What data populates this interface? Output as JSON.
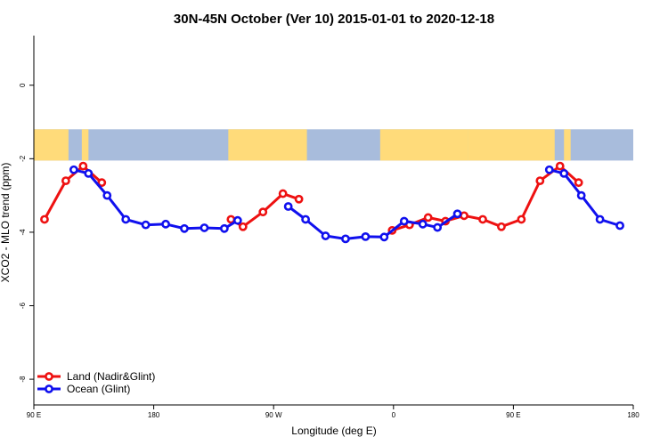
{
  "chart_data": {
    "type": "line",
    "title": "30N-45N October (Ver 10)   2015-01-01 to 2020-12-18",
    "xlabel": "Longitude (deg E)",
    "ylabel": "XCO2 - MLO trend (ppm)",
    "x_axis": {
      "ticks": [
        {
          "value": 90,
          "label": "90 E"
        },
        {
          "value": 180,
          "label": "180"
        },
        {
          "value": 270,
          "label": "90 W"
        },
        {
          "value": 360,
          "label": "0"
        },
        {
          "value": 450,
          "label": "90 E"
        },
        {
          "value": 540,
          "label": "180"
        }
      ],
      "range": [
        90,
        540
      ]
    },
    "y_axis": {
      "ticks": [
        {
          "value": 0,
          "label": "0"
        },
        {
          "value": -2,
          "label": "-2"
        },
        {
          "value": -4,
          "label": "-4"
        },
        {
          "value": -6,
          "label": "-6"
        },
        {
          "value": -8,
          "label": "-8"
        }
      ],
      "range": [
        -8.7,
        1.35
      ]
    },
    "map_band": {
      "y_top": -1.2,
      "y_bottom": -2.05,
      "ocean_color": "#a8bcdc",
      "land_color": "#ffdb7a"
    },
    "legend": {
      "position": "bottom-left"
    },
    "grid": false,
    "series": [
      {
        "name": "Land (Nadir&Glint)",
        "color": "#ee1111",
        "segments": [
          [
            [
              98,
              -3.65
            ],
            [
              114,
              -2.6
            ],
            [
              127,
              -2.2
            ],
            [
              141,
              -2.65
            ]
          ],
          [
            [
              238,
              -3.65
            ],
            [
              247,
              -3.85
            ],
            [
              262,
              -3.45
            ],
            [
              277,
              -2.95
            ],
            [
              289,
              -3.1
            ]
          ],
          [
            [
              359,
              -3.95
            ],
            [
              372,
              -3.8
            ],
            [
              386,
              -3.6
            ],
            [
              399,
              -3.7
            ],
            [
              413,
              -3.55
            ],
            [
              427,
              -3.65
            ],
            [
              441,
              -3.85
            ],
            [
              456,
              -3.65
            ],
            [
              470,
              -2.6
            ],
            [
              485,
              -2.2
            ],
            [
              499,
              -2.65
            ]
          ]
        ]
      },
      {
        "name": "Ocean (Glint)",
        "color": "#1010ee",
        "segments": [
          [
            [
              120,
              -2.3
            ],
            [
              131,
              -2.4
            ],
            [
              145,
              -3.0
            ],
            [
              159,
              -3.65
            ],
            [
              174,
              -3.8
            ],
            [
              189,
              -3.78
            ],
            [
              203,
              -3.9
            ],
            [
              218,
              -3.88
            ],
            [
              233,
              -3.9
            ],
            [
              243,
              -3.68
            ]
          ],
          [
            [
              281,
              -3.3
            ],
            [
              294,
              -3.65
            ],
            [
              309,
              -4.1
            ],
            [
              324,
              -4.18
            ],
            [
              339,
              -4.12
            ],
            [
              353,
              -4.13
            ],
            [
              368,
              -3.7
            ],
            [
              382,
              -3.78
            ],
            [
              393,
              -3.87
            ],
            [
              408,
              -3.5
            ]
          ],
          [
            [
              477,
              -2.3
            ],
            [
              488,
              -2.4
            ],
            [
              501,
              -3.0
            ],
            [
              515,
              -3.65
            ],
            [
              530,
              -3.82
            ]
          ]
        ]
      }
    ]
  }
}
